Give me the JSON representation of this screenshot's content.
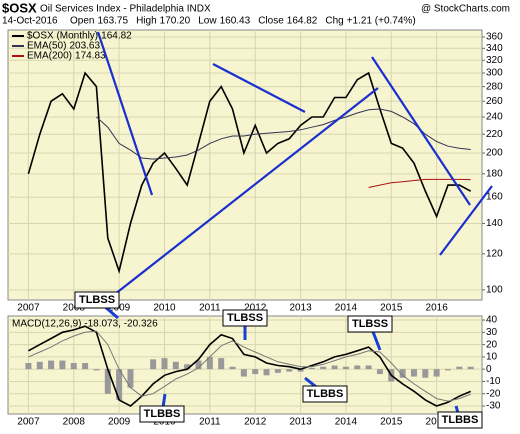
{
  "header": {
    "symbol": "$OSX",
    "title": "Oil Services Index - Philadelphia INDX",
    "brand": "@ StockCharts.com",
    "date": "14-Oct-2016",
    "quote": [
      {
        "label": "Open",
        "value": "163.75"
      },
      {
        "label": "High",
        "value": "170.20"
      },
      {
        "label": "Low",
        "value": "160.43"
      },
      {
        "label": "Close",
        "value": "164.82"
      },
      {
        "label": "Chg",
        "value": "+1.21 (+0.74%)"
      }
    ]
  },
  "chart_data": [
    {
      "type": "line",
      "log_scale": true,
      "grid": true,
      "x": [
        2007.0,
        2007.25,
        2007.5,
        2007.75,
        2008.0,
        2008.25,
        2008.5,
        2008.75,
        2009.0,
        2009.25,
        2009.5,
        2009.75,
        2010.0,
        2010.25,
        2010.5,
        2010.75,
        2011.0,
        2011.25,
        2011.5,
        2011.75,
        2012.0,
        2012.25,
        2012.5,
        2012.75,
        2013.0,
        2013.25,
        2013.5,
        2013.75,
        2014.0,
        2014.25,
        2014.5,
        2014.75,
        2015.0,
        2015.25,
        2015.5,
        2015.75,
        2016.0,
        2016.25,
        2016.5,
        2016.75
      ],
      "series": [
        {
          "name": "$OSX (Monthly)",
          "last_label": "164.82",
          "color": "#000000",
          "values": [
            180,
            220,
            260,
            270,
            250,
            300,
            280,
            130,
            110,
            140,
            170,
            190,
            200,
            185,
            170,
            210,
            260,
            280,
            250,
            200,
            230,
            200,
            210,
            215,
            230,
            240,
            240,
            265,
            265,
            290,
            300,
            250,
            210,
            205,
            190,
            165,
            145,
            170,
            170,
            164.82
          ]
        },
        {
          "name": "EMA(50)",
          "last_label": "203.63",
          "color": "#333355",
          "values": [
            null,
            null,
            null,
            null,
            null,
            null,
            240,
            228,
            210,
            203,
            195,
            194,
            195,
            196,
            198,
            203,
            210,
            215,
            218,
            218,
            220,
            221,
            222,
            223,
            225,
            228,
            231,
            236,
            240,
            245,
            249,
            250,
            247,
            240,
            232,
            220,
            212,
            207,
            205,
            203.63
          ]
        },
        {
          "name": "EMA(200)",
          "last_label": "174.83",
          "color": "#aa1111",
          "values": [
            null,
            null,
            null,
            null,
            null,
            null,
            null,
            null,
            null,
            null,
            null,
            null,
            null,
            null,
            null,
            null,
            null,
            null,
            null,
            null,
            null,
            null,
            null,
            null,
            null,
            null,
            null,
            null,
            null,
            null,
            168,
            170,
            172,
            173,
            174,
            175,
            175,
            175,
            175,
            174.83
          ]
        }
      ],
      "xlim": [
        2006.55,
        2017.0
      ],
      "xticks": [
        2007,
        2008,
        2009,
        2010,
        2011,
        2012,
        2013,
        2014,
        2015,
        2016
      ],
      "ylim": [
        95,
        373
      ],
      "yticks": [
        100,
        120,
        140,
        160,
        180,
        200,
        220,
        240,
        260,
        280,
        300,
        320,
        340,
        360
      ]
    },
    {
      "type": "macd",
      "grid": true,
      "label": "MACD(12,26,9) -18.073, -20.326",
      "x": [
        2007.0,
        2007.25,
        2007.5,
        2007.75,
        2008.0,
        2008.25,
        2008.5,
        2008.75,
        2009.0,
        2009.25,
        2009.5,
        2009.75,
        2010.0,
        2010.25,
        2010.5,
        2010.75,
        2011.0,
        2011.25,
        2011.5,
        2011.75,
        2012.0,
        2012.25,
        2012.5,
        2012.75,
        2013.0,
        2013.25,
        2013.5,
        2013.75,
        2014.0,
        2014.25,
        2014.5,
        2014.75,
        2015.0,
        2015.25,
        2015.5,
        2015.75,
        2016.0,
        2016.25,
        2016.5,
        2016.75
      ],
      "series": [
        {
          "name": "MACD",
          "color": "#000000",
          "values": [
            15,
            20,
            25,
            30,
            32,
            35,
            30,
            0,
            -25,
            -30,
            -22,
            -12,
            -5,
            -2,
            0,
            8,
            20,
            28,
            25,
            12,
            10,
            5,
            3,
            2,
            0,
            3,
            6,
            10,
            12,
            15,
            18,
            10,
            -5,
            -12,
            -18,
            -25,
            -30,
            -27,
            -22,
            -18.073
          ]
        },
        {
          "name": "Signal",
          "color": "#777777",
          "values": [
            10,
            14,
            18,
            23,
            27,
            30,
            31,
            20,
            0,
            -15,
            -22,
            -20,
            -14,
            -8,
            -4,
            1,
            10,
            19,
            23,
            18,
            14,
            10,
            6,
            4,
            2,
            2,
            4,
            7,
            10,
            12,
            15,
            14,
            5,
            -5,
            -12,
            -18,
            -24,
            -26,
            -24,
            -20.326
          ]
        },
        {
          "name": "Histogram",
          "color": "#999999",
          "histogram": true,
          "values": [
            5,
            6,
            7,
            7,
            5,
            5,
            -1,
            -20,
            -25,
            -15,
            0,
            8,
            9,
            6,
            4,
            7,
            10,
            9,
            2,
            -6,
            -4,
            -5,
            -3,
            -2,
            -2,
            1,
            2,
            3,
            2,
            3,
            3,
            -4,
            -10,
            -7,
            -6,
            -7,
            -6,
            -1,
            2,
            2
          ]
        }
      ],
      "xlim": [
        2006.55,
        2017.0
      ],
      "xticks": [
        2007,
        2008,
        2009,
        2010,
        2011,
        2012,
        2013,
        2014,
        2015,
        2016
      ],
      "ylim": [
        -36.5,
        43.3
      ],
      "yticks": [
        40,
        30,
        20,
        10,
        0,
        -10,
        -20,
        -30
      ],
      "annotations": [
        "TLBSS",
        "TLBSS",
        "TLBSS",
        "TLBBS",
        "TLBBS",
        "TLBBS"
      ]
    }
  ]
}
